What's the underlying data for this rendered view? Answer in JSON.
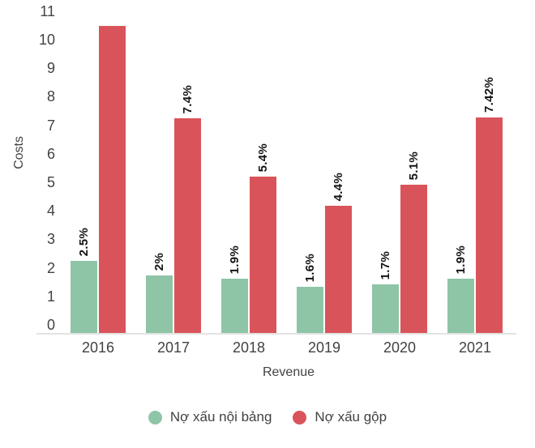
{
  "chart_data": {
    "type": "bar",
    "title": "",
    "xlabel": "Revenue",
    "ylabel": "Costs",
    "categories": [
      "2016",
      "2017",
      "2018",
      "2019",
      "2020",
      "2021"
    ],
    "series": [
      {
        "name": "Nợ xấu nội bảng",
        "color": "#8fc5a7",
        "values": [
          2.5,
          2.0,
          1.9,
          1.6,
          1.7,
          1.9
        ],
        "labels": [
          "2.5%",
          "2%",
          "1.9%",
          "1.6%",
          "1.7%",
          "1.9%"
        ]
      },
      {
        "name": "Nợ xấu gộp",
        "color": "#d9545a",
        "values": [
          10.55,
          7.4,
          5.4,
          4.4,
          5.1,
          7.42
        ],
        "labels": [
          "",
          "7.4%",
          "5.4%",
          "4.4%",
          "5.1%",
          "7.42%"
        ]
      }
    ],
    "ylim": [
      0,
      11
    ],
    "yticks": [
      0,
      1,
      2,
      3,
      4,
      5,
      6,
      7,
      8,
      9,
      10,
      11
    ],
    "grid": false,
    "legend_position": "bottom",
    "annotation_rotation": "vertical",
    "axis_text_color": "#424242",
    "annotation_color": "#141414",
    "baseline_color": "#e3e3e3",
    "background_color": "#ffffff"
  }
}
